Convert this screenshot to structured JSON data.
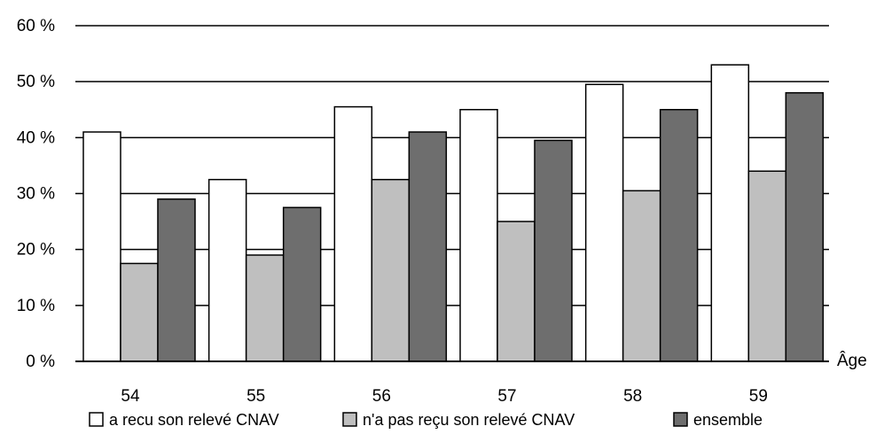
{
  "chart_data": {
    "type": "bar",
    "categories": [
      "54",
      "55",
      "56",
      "57",
      "58",
      "59"
    ],
    "series": [
      {
        "name": "a recu son relevé CNAV",
        "values": [
          41,
          32.5,
          45.5,
          45,
          49.5,
          53
        ],
        "color": "#ffffff"
      },
      {
        "name": "n'a pas reçu son relevé CNAV",
        "values": [
          17.5,
          19,
          32.5,
          25,
          30.5,
          34
        ],
        "color": "#bfbfbf"
      },
      {
        "name": "ensemble",
        "values": [
          29,
          27.5,
          41,
          39.5,
          45,
          48
        ],
        "color": "#6e6e6e"
      }
    ],
    "yticks": [
      "0 %",
      "10 %",
      "20 %",
      "30 %",
      "40 %",
      "50 %",
      "60 %"
    ],
    "ylim": [
      0,
      60
    ],
    "xlabel": "Âge",
    "ylabel": "",
    "grid": true,
    "legend_position": "bottom"
  }
}
